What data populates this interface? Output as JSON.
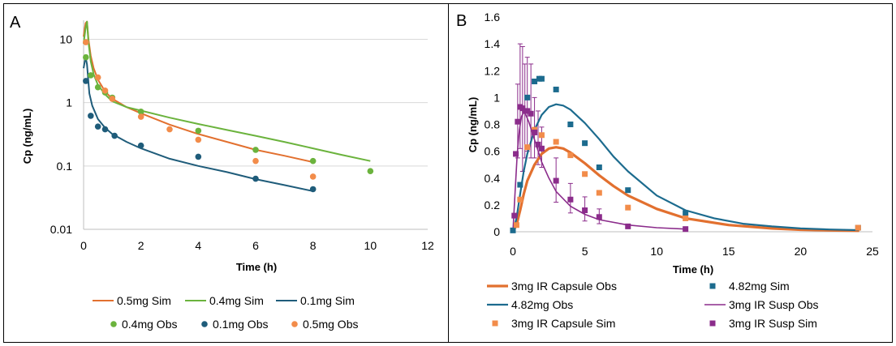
{
  "colors": {
    "orange": "#e2702f",
    "green": "#6bb33d",
    "blue": "#1f5c7a",
    "teal": "#1c6b8e",
    "light_orange": "#f28c4a",
    "purple": "#8b2c8b",
    "grid": "#d9d9d9",
    "frame": "#000000"
  },
  "chart_data": [
    {
      "panel_label": "A",
      "type": "line",
      "xlabel": "Time (h)",
      "ylabel": "Cp (ng/mL)",
      "xlim": [
        0,
        12
      ],
      "ylim": [
        0.01,
        20
      ],
      "yscale": "log",
      "grid": true,
      "xticks": [
        0,
        2,
        4,
        6,
        8,
        10,
        12
      ],
      "ytick_labels": [
        {
          "value": 0.01,
          "label": "0.01"
        },
        {
          "value": 0.1,
          "label": "0.1"
        },
        {
          "value": 1,
          "label": "1"
        },
        {
          "value": 10,
          "label": "10"
        }
      ],
      "legend_position": "bottom",
      "series": [
        {
          "name": "0.5mg Sim",
          "kind": "line",
          "color_key": "orange",
          "x": [
            0,
            0.03,
            0.07,
            0.12,
            0.17,
            0.25,
            0.35,
            0.5,
            0.75,
            1,
            1.5,
            2,
            3,
            4,
            5,
            6,
            7,
            8
          ],
          "y": [
            11,
            14,
            18,
            19,
            10,
            5.5,
            3.5,
            2.3,
            1.5,
            1.15,
            0.85,
            0.68,
            0.45,
            0.32,
            0.24,
            0.18,
            0.145,
            0.115
          ]
        },
        {
          "name": "0.4mg Sim",
          "kind": "line",
          "color_key": "green",
          "x": [
            0,
            0.03,
            0.07,
            0.12,
            0.17,
            0.25,
            0.35,
            0.5,
            0.75,
            1,
            1.5,
            2,
            3,
            4,
            5,
            6,
            7,
            8,
            9,
            10
          ],
          "y": [
            8.5,
            11,
            15,
            19,
            9,
            4.5,
            2.8,
            1.9,
            1.35,
            1.05,
            0.85,
            0.75,
            0.58,
            0.46,
            0.37,
            0.3,
            0.24,
            0.19,
            0.15,
            0.12
          ]
        },
        {
          "name": "0.1mg Sim",
          "kind": "line",
          "color_key": "blue",
          "x": [
            0,
            0.03,
            0.07,
            0.12,
            0.2,
            0.3,
            0.5,
            0.75,
            1,
            1.5,
            2,
            3,
            4,
            5,
            6,
            7,
            8
          ],
          "y": [
            3.5,
            4.2,
            5.3,
            4.0,
            1.4,
            0.9,
            0.55,
            0.4,
            0.32,
            0.24,
            0.19,
            0.13,
            0.1,
            0.08,
            0.062,
            0.05,
            0.04
          ]
        },
        {
          "name": "0.4mg Obs",
          "kind": "scatter",
          "color_key": "green",
          "x": [
            0.08,
            0.25,
            0.5,
            0.75,
            1,
            2,
            4,
            6,
            8,
            10
          ],
          "y": [
            5.2,
            2.7,
            1.75,
            1.45,
            1.2,
            0.72,
            0.36,
            0.18,
            0.12,
            0.083
          ]
        },
        {
          "name": "0.1mg Obs",
          "kind": "scatter",
          "color_key": "blue",
          "x": [
            0.08,
            0.25,
            0.5,
            0.75,
            1.08,
            2,
            4,
            6,
            8
          ],
          "y": [
            2.2,
            0.62,
            0.42,
            0.38,
            0.3,
            0.21,
            0.14,
            0.063,
            0.043
          ]
        },
        {
          "name": "0.5mg Obs",
          "kind": "scatter",
          "color_key": "light_orange",
          "x": [
            0.08,
            0.5,
            0.75,
            1,
            2,
            3,
            4,
            6,
            8
          ],
          "y": [
            9,
            2.5,
            1.55,
            1.15,
            0.6,
            0.38,
            0.26,
            0.12,
            0.068
          ]
        }
      ]
    },
    {
      "panel_label": "B",
      "type": "line",
      "xlabel": "Time (h)",
      "ylabel": "Cp (ng/mL)",
      "xlim": [
        0,
        25
      ],
      "ylim": [
        0,
        1.6
      ],
      "grid": false,
      "xticks": [
        0,
        5,
        10,
        15,
        20,
        25
      ],
      "yticks": [
        0,
        0.2,
        0.4,
        0.6,
        0.8,
        1,
        1.2,
        1.4,
        1.6
      ],
      "ytick_labels": [
        "0",
        "0.2",
        "0.4",
        "0.6",
        "0.8",
        "1",
        "1.2",
        "1.4",
        "1.6"
      ],
      "legend_position": "bottom",
      "series": [
        {
          "name": "3mg IR Capsule Obs",
          "kind": "line",
          "color_key": "orange",
          "width": 3.2,
          "x": [
            0,
            0.25,
            0.5,
            0.75,
            1,
            1.5,
            2,
            2.5,
            3,
            3.5,
            4,
            5,
            6,
            7,
            8,
            10,
            12,
            15,
            18,
            20,
            22,
            24
          ],
          "y": [
            0,
            0.05,
            0.16,
            0.28,
            0.38,
            0.5,
            0.58,
            0.62,
            0.63,
            0.62,
            0.59,
            0.51,
            0.42,
            0.34,
            0.27,
            0.17,
            0.1,
            0.05,
            0.025,
            0.015,
            0.01,
            0.007
          ]
        },
        {
          "name": "4.82mg Obs",
          "kind": "line",
          "color_key": "teal",
          "width": 2.2,
          "x": [
            0,
            0.25,
            0.5,
            0.75,
            1,
            1.5,
            2,
            2.5,
            3,
            3.5,
            4,
            5,
            6,
            7,
            8,
            10,
            12,
            14,
            16,
            18,
            20,
            22,
            24
          ],
          "y": [
            0,
            0.1,
            0.28,
            0.45,
            0.58,
            0.76,
            0.87,
            0.93,
            0.95,
            0.94,
            0.91,
            0.81,
            0.69,
            0.56,
            0.45,
            0.27,
            0.16,
            0.1,
            0.06,
            0.04,
            0.025,
            0.017,
            0.012
          ]
        },
        {
          "name": "3mg IR Susp Obs",
          "kind": "line",
          "color_key": "purple",
          "width": 1.6,
          "x": [
            0,
            0.15,
            0.3,
            0.45,
            0.6,
            0.75,
            0.9,
            1.1,
            1.4,
            1.7,
            2,
            2.5,
            3,
            4,
            5,
            6,
            8,
            10,
            12
          ],
          "y": [
            0,
            0.3,
            0.58,
            0.76,
            0.86,
            0.89,
            0.87,
            0.82,
            0.72,
            0.62,
            0.52,
            0.4,
            0.3,
            0.19,
            0.13,
            0.09,
            0.05,
            0.03,
            0.02
          ]
        },
        {
          "name": "4.82mg Sim",
          "kind": "square",
          "color_key": "teal",
          "x": [
            0,
            0.5,
            1,
            1.5,
            1.83,
            2,
            3,
            4,
            5,
            6,
            8,
            12,
            24
          ],
          "y": [
            0.01,
            0.35,
            1.0,
            1.12,
            1.14,
            1.14,
            1.06,
            0.8,
            0.66,
            0.48,
            0.31,
            0.14,
            0.03
          ]
        },
        {
          "name": "3mg IR Capsule Sim",
          "kind": "square",
          "color_key": "light_orange",
          "x": [
            0.25,
            0.5,
            1,
            1.5,
            2,
            3,
            4,
            5,
            6,
            8,
            12,
            24
          ],
          "y": [
            0.05,
            0.24,
            0.63,
            0.76,
            0.72,
            0.67,
            0.57,
            0.43,
            0.29,
            0.18,
            0.1,
            0.03
          ]
        },
        {
          "name": "3mg IR Susp Sim",
          "kind": "square",
          "color_key": "purple",
          "x": [
            0.1,
            0.2,
            0.33,
            0.5,
            0.67,
            0.83,
            1,
            1.25,
            1.5,
            1.75,
            2,
            3,
            4,
            5,
            6,
            8,
            12
          ],
          "y": [
            0.12,
            0.58,
            0.82,
            0.93,
            0.92,
            0.9,
            0.9,
            0.88,
            0.74,
            0.65,
            0.62,
            0.38,
            0.24,
            0.16,
            0.11,
            0.04,
            0.02
          ]
        }
      ],
      "error_bars": {
        "series": "3mg IR Susp Sim",
        "color_key": "purple",
        "points": [
          {
            "x": 0.33,
            "low": 0.55,
            "high": 1.1
          },
          {
            "x": 0.5,
            "low": 0.62,
            "high": 1.4
          },
          {
            "x": 0.67,
            "low": 0.45,
            "high": 1.38
          },
          {
            "x": 0.83,
            "low": 0.55,
            "high": 1.25
          },
          {
            "x": 1,
            "low": 0.6,
            "high": 1.3
          },
          {
            "x": 1.25,
            "low": 0.55,
            "high": 1.25
          },
          {
            "x": 1.5,
            "low": 0.55,
            "high": 1.0
          },
          {
            "x": 1.75,
            "low": 0.5,
            "high": 0.9
          },
          {
            "x": 2,
            "low": 0.48,
            "high": 0.78
          },
          {
            "x": 3,
            "low": 0.22,
            "high": 0.55
          },
          {
            "x": 4,
            "low": 0.14,
            "high": 0.36
          },
          {
            "x": 5,
            "low": 0.08,
            "high": 0.26
          },
          {
            "x": 6,
            "low": 0.06,
            "high": 0.17
          }
        ]
      }
    }
  ]
}
